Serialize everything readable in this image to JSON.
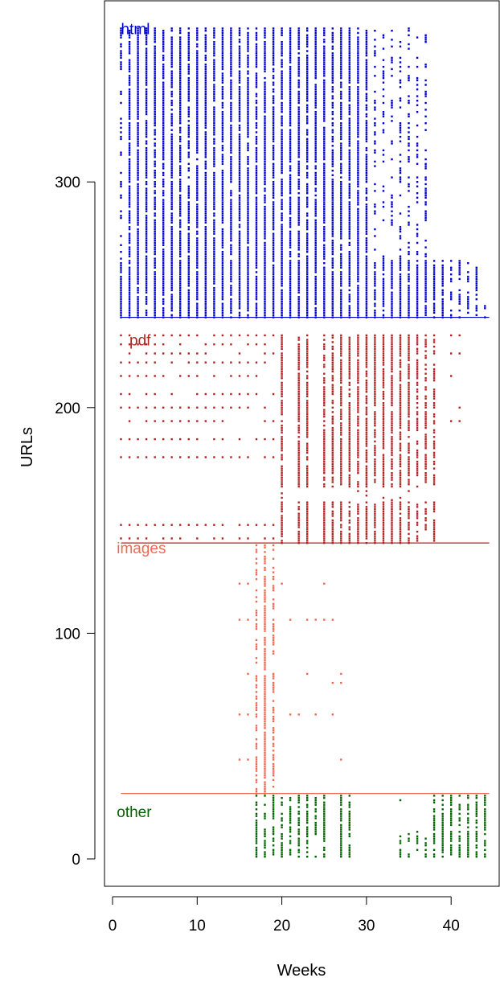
{
  "chart_data": {
    "type": "scatter",
    "title": "",
    "xlabel": "Weeks",
    "ylabel": "URLs",
    "xlim": [
      -0.3,
      44.7
    ],
    "ylim": [
      -12.5,
      371.5
    ],
    "xticks": [
      0,
      10,
      20,
      30,
      40
    ],
    "yticks": [
      0,
      100,
      200,
      300
    ],
    "grid": false,
    "marker": "small square, one per (week, URL) observation",
    "groups": [
      {
        "name": "html",
        "color": "#0000CC",
        "label_position": [
          1,
          368
        ],
        "separator_y": 240,
        "url_range": [
          240,
          368
        ],
        "row_max_week": {
          "240": 44,
          "241": 44,
          "242": 44,
          "243": 44,
          "244": 44,
          "245": 44,
          "246": 44,
          "247": 43,
          "248": 43,
          "249": 43,
          "250": 43,
          "251": 43,
          "252": 43,
          "253": 43,
          "254": 43,
          "255": 43,
          "256": 43,
          "257": 43,
          "258": 43,
          "259": 43,
          "260": 43,
          "261": 43,
          "262": 43,
          "263": 43,
          "264": 43,
          "265": 43,
          "266": 37,
          "267": 37,
          "268": 37,
          "269": 37,
          "270": 37,
          "271": 37,
          "272": 37,
          "273": 37,
          "274": 37,
          "275": 37,
          "276": 37,
          "277": 37,
          "278": 37,
          "279": 37,
          "280": 37,
          "281": 37,
          "282": 37,
          "283": 37,
          "284": 37,
          "285": 37,
          "286": 37,
          "287": 37,
          "288": 37,
          "289": 37,
          "290": 37,
          "291": 37,
          "292": 37,
          "293": 37,
          "294": 37,
          "295": 37,
          "296": 37,
          "297": 37,
          "298": 37,
          "299": 37,
          "300": 37,
          "301": 37,
          "302": 37,
          "303": 37,
          "304": 37,
          "305": 37,
          "306": 37,
          "307": 37,
          "308": 37,
          "309": 37,
          "310": 37,
          "311": 37,
          "312": 37,
          "313": 37,
          "314": 37,
          "315": 37,
          "316": 37,
          "317": 37,
          "318": 37,
          "319": 37,
          "320": 37,
          "321": 37,
          "322": 37,
          "323": 37,
          "324": 37,
          "325": 37,
          "326": 37,
          "327": 37,
          "328": 37,
          "329": 37,
          "330": 37,
          "331": 37,
          "332": 37,
          "333": 37,
          "334": 37,
          "335": 37,
          "336": 37,
          "337": 37,
          "338": 37,
          "339": 37,
          "340": 37,
          "341": 37,
          "342": 37,
          "343": 37,
          "344": 37,
          "345": 37,
          "346": 37,
          "347": 37,
          "348": 37,
          "349": 37,
          "350": 37,
          "351": 37,
          "352": 37,
          "353": 37,
          "354": 37,
          "355": 37,
          "356": 37,
          "357": 37,
          "358": 37,
          "359": 37,
          "360": 37,
          "361": 37,
          "362": 37,
          "363": 37,
          "364": 37,
          "365": 37,
          "366": 37,
          "367": 37,
          "368": 37
        },
        "row_min_week": 1,
        "active_weeks": [
          1,
          2,
          3,
          4,
          5,
          6,
          7,
          8,
          9,
          10,
          11,
          12,
          13,
          14,
          15,
          16,
          17,
          18,
          19,
          20,
          21,
          22,
          23,
          24,
          25,
          26,
          27,
          28,
          29,
          30,
          31,
          32,
          33,
          34,
          35,
          36,
          37,
          38,
          39,
          40,
          41,
          42,
          43,
          44
        ],
        "sparse_rows_weeks_max": 30
      },
      {
        "name": "pdf",
        "color": "#B22222",
        "label_position": [
          2,
          230
        ],
        "separator_y": 140,
        "url_range": [
          140,
          232
        ],
        "dense_weeks": [
          20,
          22,
          23,
          25,
          26,
          27,
          28,
          29,
          30,
          31,
          32,
          33,
          34,
          35,
          36,
          37,
          38
        ],
        "sparse_weeks": [
          1,
          2,
          3,
          4,
          5,
          6,
          7,
          8,
          9,
          10,
          11,
          12,
          13,
          14,
          15,
          16,
          17,
          18,
          19,
          40,
          41
        ],
        "sparse_rows": [
          142,
          148,
          178,
          186,
          194,
          200,
          206,
          214,
          220,
          224,
          228,
          232
        ]
      },
      {
        "name": "images",
        "color": "#EE6A50",
        "label_position": [
          0.5,
          138
        ],
        "separator_y": 29,
        "url_range": [
          29,
          139
        ],
        "dense_weeks": [
          17,
          18,
          19
        ],
        "sparse_weeks": [
          15,
          16,
          20,
          21,
          22,
          23,
          24,
          25,
          26,
          27
        ],
        "sparse_rows": [
          44,
          64,
          78,
          82,
          106,
          122
        ]
      },
      {
        "name": "other",
        "color": "#006400",
        "label_position": [
          0.5,
          21
        ],
        "url_range": [
          1,
          28
        ],
        "weeks": [
          17,
          18,
          19,
          20,
          21,
          22,
          23,
          24,
          25,
          27,
          28,
          34,
          35,
          36,
          37,
          38,
          39,
          40,
          41,
          42,
          43,
          44
        ],
        "partial_weeks": [
          34,
          35,
          36,
          37
        ],
        "partial_row_min": 1
      }
    ]
  }
}
